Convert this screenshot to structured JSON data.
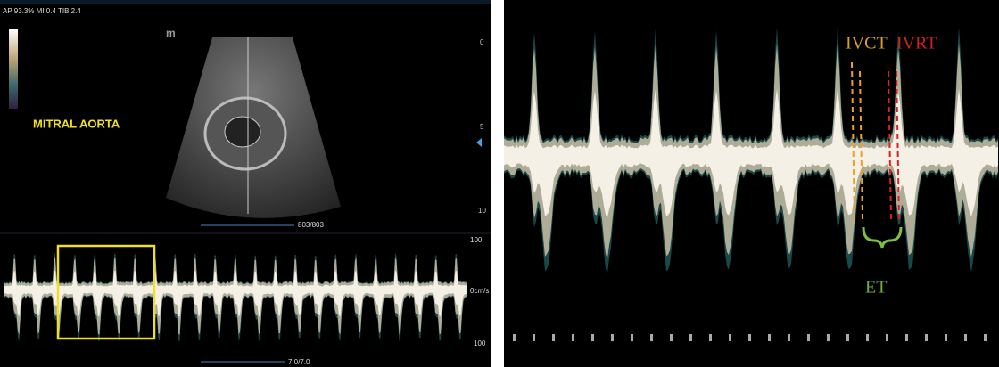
{
  "left_panel": {
    "header": "AP 93.3% MI 0.4 TIB 2.4",
    "logo": "m",
    "label": "MITRAL AORTA",
    "depth_scale": [
      "0",
      "5",
      "10"
    ],
    "frame_counter": "803/803",
    "velocity_scale": {
      "top": "100",
      "baseline": "0cm/s",
      "bottom": "100"
    },
    "sweep_counter": "7.0/7.0"
  },
  "right_panel": {
    "annotations": {
      "ivct": "IVCT",
      "ivrt": "IVRT",
      "et": "ET"
    }
  }
}
